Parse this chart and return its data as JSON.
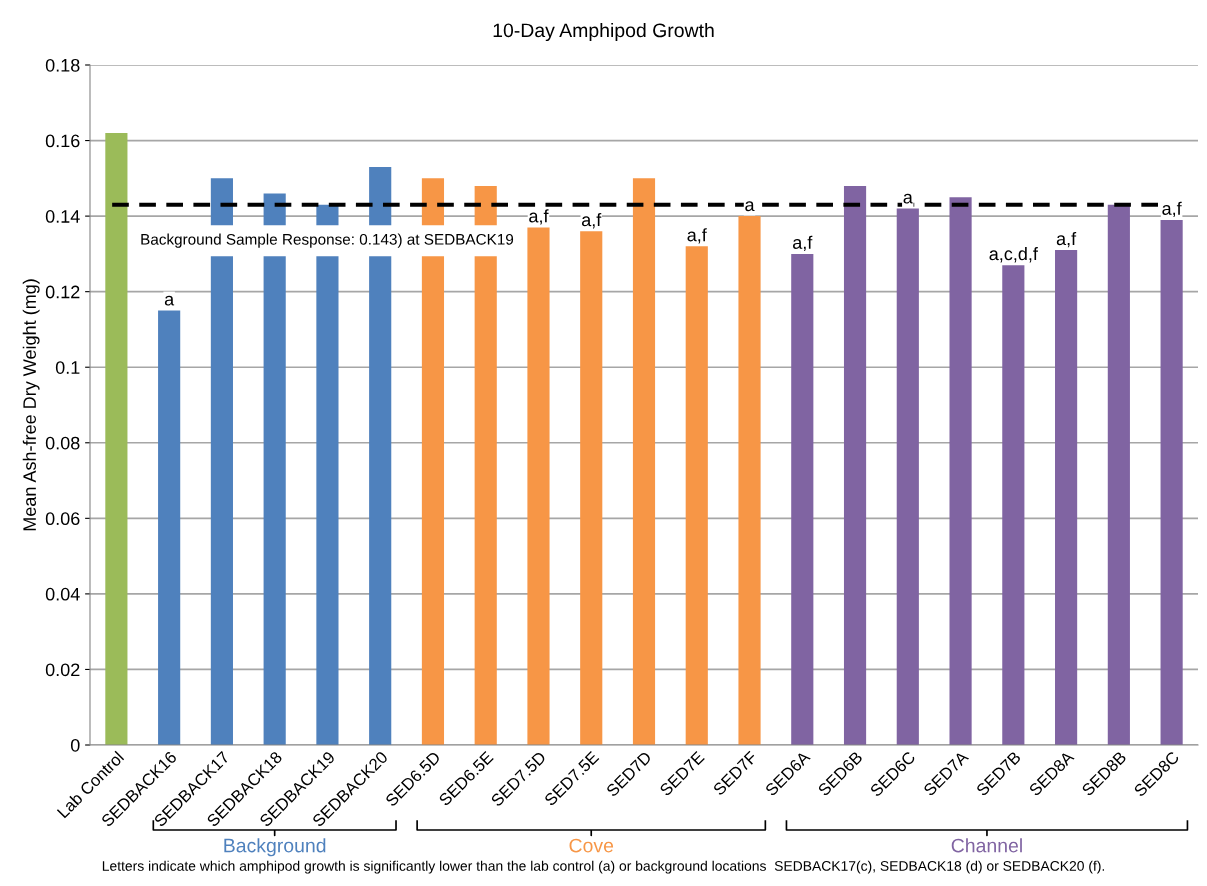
{
  "chart_data": {
    "type": "bar",
    "title": "10-Day Amphipod Growth",
    "ylabel": "Mean Ash-free Dry Weight (mg)",
    "categories": [
      "Lab Control",
      "SEDBACK16",
      "SEDBACK17",
      "SEDBACK18",
      "SEDBACK19",
      "SEDBACK20",
      "SED6.5D",
      "SED6.5E",
      "SED7.5D",
      "SED7.5E",
      "SED7D",
      "SED7E",
      "SED7F",
      "SED6A",
      "SED6B",
      "SED6C",
      "SED7A",
      "SED7B",
      "SED8A",
      "SED8B",
      "SED8C"
    ],
    "series": [
      {
        "color": "#9bbb59",
        "values": [
          0.162,
          null,
          null,
          null,
          null,
          null,
          null,
          null,
          null,
          null,
          null,
          null,
          null,
          null,
          null,
          null,
          null,
          null,
          null,
          null,
          null
        ],
        "value_labels": [
          null,
          null,
          null,
          null,
          null,
          null,
          null,
          null,
          null,
          null,
          null,
          null,
          null,
          null,
          null,
          null,
          null,
          null,
          null,
          null,
          null
        ]
      },
      {
        "name": "Background",
        "color": "#4f81bd",
        "values": [
          null,
          0.115,
          0.15,
          0.146,
          0.143,
          0.153,
          null,
          null,
          null,
          null,
          null,
          null,
          null,
          null,
          null,
          null,
          null,
          null,
          null,
          null,
          null
        ],
        "value_labels": [
          null,
          "a",
          null,
          null,
          null,
          null,
          null,
          null,
          null,
          null,
          null,
          null,
          null,
          null,
          null,
          null,
          null,
          null,
          null,
          null,
          null
        ]
      },
      {
        "name": "Cove",
        "color": "#f79646",
        "values": [
          null,
          null,
          null,
          null,
          null,
          null,
          0.15,
          0.148,
          0.137,
          0.136,
          0.15,
          0.132,
          0.14,
          null,
          null,
          null,
          null,
          null,
          null,
          null,
          null
        ],
        "value_labels": [
          null,
          null,
          null,
          null,
          null,
          null,
          null,
          null,
          "a,f",
          "a,f",
          null,
          "a,f",
          "a",
          null,
          null,
          null,
          null,
          null,
          null,
          null,
          null
        ]
      },
      {
        "name": "Channel",
        "color": "#8064a2",
        "values": [
          null,
          null,
          null,
          null,
          null,
          null,
          null,
          null,
          null,
          null,
          null,
          null,
          null,
          0.13,
          0.148,
          0.142,
          0.145,
          0.127,
          0.131,
          0.143,
          0.139
        ],
        "value_labels": [
          null,
          null,
          null,
          null,
          null,
          null,
          null,
          null,
          null,
          null,
          null,
          null,
          null,
          "a,f",
          null,
          "a",
          null,
          "a,c,d,f",
          "a,f",
          null,
          "a,f"
        ]
      }
    ],
    "ylim": [
      0,
      0.18
    ],
    "yticks": [
      0,
      0.02,
      0.04,
      0.06,
      0.08,
      0.1,
      0.12,
      0.14,
      0.16,
      0.18
    ],
    "ref_lines": [
      {
        "axis": "y",
        "value": 0.143,
        "label": "Background Sample Response: 0.143) at SEDBACK19",
        "color": "#000000",
        "line_style": "dashed"
      }
    ],
    "annotations": [
      "Letters indicate which amphipod growth is significantly lower than the lab control (a) or background locations  SEDBACK17(c), SEDBACK18 (d) or SEDBACK20 (f)."
    ],
    "grid": "y",
    "legend": false
  }
}
